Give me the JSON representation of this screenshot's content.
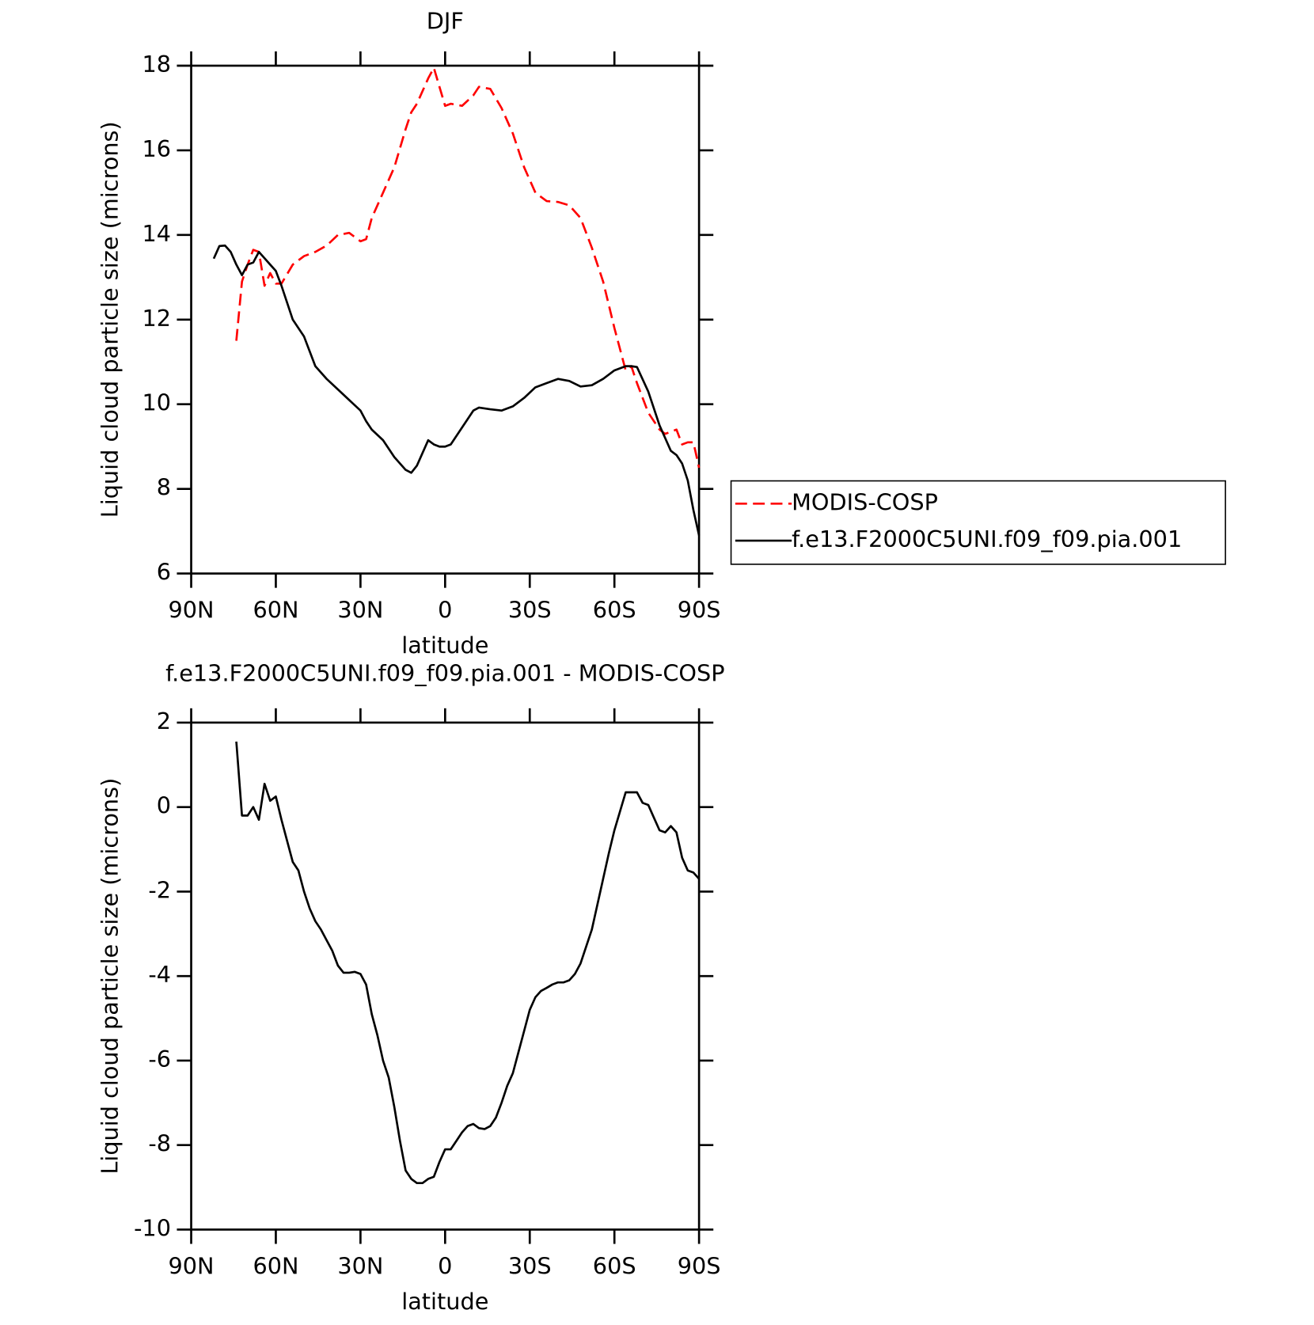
{
  "chart_data": [
    {
      "type": "line",
      "title": "DJF",
      "xlabel": "latitude",
      "ylabel": "Liquid cloud particle size (microns)",
      "x": [
        82,
        80,
        78,
        76,
        74,
        72,
        70,
        68,
        66,
        64,
        62,
        60,
        58,
        54,
        50,
        46,
        42,
        38,
        34,
        30,
        28,
        26,
        22,
        18,
        14,
        12,
        10,
        6,
        4,
        2,
        0,
        -2,
        -6,
        -10,
        -12,
        -16,
        -20,
        -24,
        -28,
        -32,
        -36,
        -40,
        -44,
        -48,
        -52,
        -56,
        -60,
        -64,
        -66,
        -68,
        -72,
        -76,
        -78,
        -80,
        -82,
        -84,
        -86,
        -88,
        -90
      ],
      "series": [
        {
          "name": "MODIS-COSP",
          "color": "#ff0000",
          "linestyle": "dashed",
          "values": [
            null,
            null,
            null,
            null,
            11.5,
            12.9,
            13.3,
            13.65,
            13.6,
            12.8,
            13.1,
            12.85,
            12.85,
            13.3,
            13.5,
            13.6,
            13.75,
            14.0,
            14.05,
            13.85,
            13.9,
            14.4,
            15.0,
            15.6,
            16.5,
            16.9,
            17.1,
            17.7,
            17.95,
            17.5,
            17.05,
            17.1,
            17.05,
            17.3,
            17.5,
            17.45,
            17.0,
            16.4,
            15.6,
            15.0,
            14.8,
            14.78,
            14.7,
            14.4,
            13.7,
            12.9,
            11.8,
            10.8,
            10.9,
            10.5,
            9.8,
            9.4,
            9.3,
            9.35,
            9.4,
            9.05,
            9.1,
            9.1,
            8.5
          ]
        },
        {
          "name": "f.e13.F2000C5UNI.f09_f09.pia.001",
          "color": "#000000",
          "linestyle": "solid",
          "values": [
            13.44,
            13.74,
            13.75,
            13.6,
            13.3,
            13.05,
            13.3,
            13.35,
            13.6,
            13.45,
            13.3,
            13.15,
            12.8,
            12.0,
            11.6,
            10.9,
            10.6,
            10.35,
            10.1,
            9.85,
            9.6,
            9.4,
            9.15,
            8.75,
            8.45,
            8.38,
            8.55,
            9.15,
            9.05,
            9.0,
            9.0,
            9.05,
            9.45,
            9.85,
            9.92,
            9.88,
            9.85,
            9.95,
            10.15,
            10.4,
            10.5,
            10.6,
            10.55,
            10.42,
            10.45,
            10.6,
            10.8,
            10.9,
            10.9,
            10.88,
            10.3,
            9.5,
            9.2,
            8.9,
            8.8,
            8.6,
            8.2,
            7.5,
            6.9
          ]
        }
      ],
      "xlim": [
        90,
        -90
      ],
      "xticks": [
        {
          "value": 90,
          "label": "90N"
        },
        {
          "value": 60,
          "label": "60N"
        },
        {
          "value": 30,
          "label": "30N"
        },
        0,
        {
          "value": -30,
          "label": "30S"
        },
        {
          "value": -60,
          "label": "60S"
        },
        {
          "value": -90,
          "label": "90S"
        }
      ],
      "ylim": [
        6,
        18
      ],
      "yticks": [
        6,
        8,
        10,
        12,
        14,
        16,
        18
      ],
      "legend": "right"
    },
    {
      "type": "line",
      "title": "f.e13.F2000C5UNI.f09_f09.pia.001 - MODIS-COSP",
      "xlabel": "latitude",
      "ylabel": "Liquid cloud particle size (microns)",
      "x": [
        74,
        72,
        70,
        68,
        66,
        64,
        62,
        60,
        58,
        56,
        54,
        52,
        50,
        48,
        46,
        44,
        42,
        40,
        38,
        36,
        34,
        32,
        30,
        28,
        26,
        24,
        22,
        20,
        18,
        16,
        14,
        12,
        10,
        8,
        6,
        4,
        2,
        0,
        -2,
        -4,
        -6,
        -8,
        -10,
        -12,
        -14,
        -16,
        -18,
        -20,
        -22,
        -24,
        -26,
        -28,
        -30,
        -32,
        -34,
        -36,
        -38,
        -40,
        -42,
        -44,
        -46,
        -48,
        -50,
        -52,
        -54,
        -56,
        -58,
        -60,
        -62,
        -64,
        -66,
        -68,
        -70,
        -72,
        -74,
        -76,
        -78,
        -80,
        -82,
        -84,
        -86,
        -88,
        -90
      ],
      "series": [
        {
          "name": "f.e13.F2000C5UNI.f09_f09.pia.001 - MODIS-COSP",
          "color": "#000000",
          "linestyle": "solid",
          "values": [
            1.55,
            -0.2,
            -0.2,
            0.0,
            -0.3,
            0.55,
            0.15,
            0.25,
            -0.3,
            -0.8,
            -1.3,
            -1.5,
            -2.0,
            -2.4,
            -2.7,
            -2.9,
            -3.15,
            -3.4,
            -3.75,
            -3.92,
            -3.92,
            -3.9,
            -3.95,
            -4.2,
            -4.9,
            -5.4,
            -6.0,
            -6.4,
            -7.1,
            -7.9,
            -8.6,
            -8.8,
            -8.9,
            -8.9,
            -8.8,
            -8.75,
            -8.4,
            -8.1,
            -8.1,
            -7.9,
            -7.7,
            -7.55,
            -7.5,
            -7.6,
            -7.62,
            -7.55,
            -7.35,
            -7.0,
            -6.6,
            -6.3,
            -5.8,
            -5.3,
            -4.8,
            -4.5,
            -4.35,
            -4.28,
            -4.2,
            -4.15,
            -4.15,
            -4.1,
            -3.95,
            -3.7,
            -3.3,
            -2.9,
            -2.3,
            -1.7,
            -1.1,
            -0.55,
            -0.1,
            0.35,
            0.35,
            0.35,
            0.1,
            0.05,
            -0.25,
            -0.55,
            -0.6,
            -0.45,
            -0.6,
            -1.2,
            -1.5,
            -1.55,
            -1.7
          ]
        }
      ],
      "xlim": [
        90,
        -90
      ],
      "xticks": [
        {
          "value": 90,
          "label": "90N"
        },
        {
          "value": 60,
          "label": "60N"
        },
        {
          "value": 30,
          "label": "30N"
        },
        0,
        {
          "value": -30,
          "label": "30S"
        },
        {
          "value": -60,
          "label": "60S"
        },
        {
          "value": -90,
          "label": "90S"
        }
      ],
      "ylim": [
        -10,
        2
      ],
      "yticks": [
        -10,
        -8,
        -6,
        -4,
        -2,
        0,
        2
      ]
    }
  ]
}
